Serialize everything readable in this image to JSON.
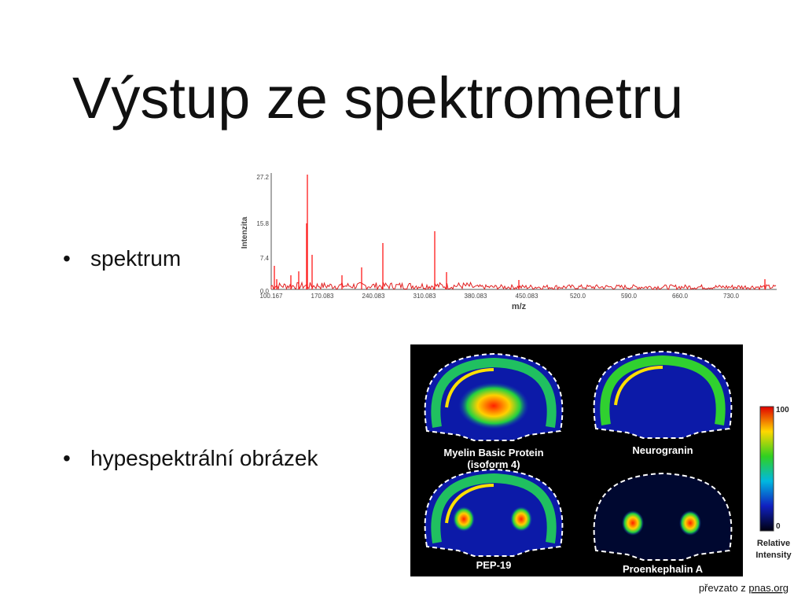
{
  "title": "Výstup ze spektrometru",
  "bullets": [
    "spektrum",
    "hypespektrální obrázek"
  ],
  "spectrum": {
    "y_label": "Intenzita",
    "x_label": "m/z",
    "y_tick_labels": [
      "27.2",
      "15.8",
      "7.4",
      "0.0"
    ],
    "x_tick_labels": [
      "100.167",
      "170.083",
      "240.083",
      "310.083",
      "380.083",
      "450.083",
      "520.0",
      "590.0",
      "660.0",
      "730.0"
    ]
  },
  "brain_images": {
    "panels": [
      {
        "label": [
          "Myelin Basic Protein",
          "(isoform 4)"
        ]
      },
      {
        "label": [
          "Neurogranin"
        ]
      },
      {
        "label": [
          "PEP-19"
        ]
      },
      {
        "label": [
          "Proenkephalin A"
        ]
      }
    ],
    "colorbar": {
      "max_label": "100",
      "min_label": "0",
      "caption": [
        "Relative",
        "Intensity"
      ]
    }
  },
  "credit": {
    "text": "převzato z ",
    "link": "pnas.org"
  }
}
